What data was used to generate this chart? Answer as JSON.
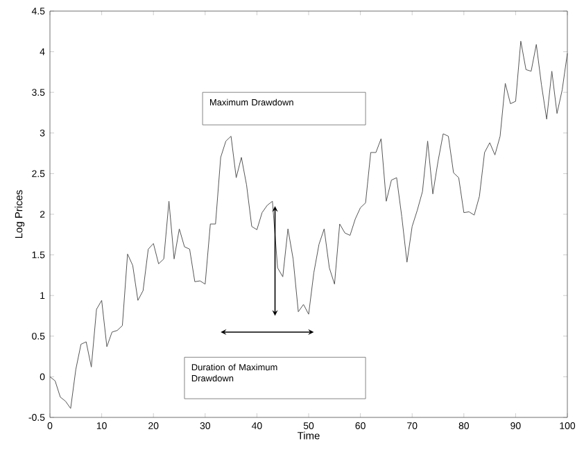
{
  "chart_data": {
    "type": "line",
    "xlabel": "Time",
    "ylabel": "Log Prices",
    "color": "#555555",
    "x": [
      0,
      1,
      2,
      3,
      4,
      5,
      6,
      7,
      8,
      9,
      10,
      11,
      12,
      13,
      14,
      15,
      16,
      17,
      18,
      19,
      20,
      21,
      22,
      23,
      24,
      25,
      26,
      27,
      28,
      29,
      30,
      31,
      32,
      33,
      34,
      35,
      36,
      37,
      38,
      39,
      40,
      41,
      42,
      43,
      44,
      45,
      46,
      47,
      48,
      49,
      50,
      51,
      52,
      53,
      54,
      55,
      56,
      57,
      58,
      59,
      60,
      61,
      62,
      63,
      64,
      65,
      66,
      67,
      68,
      69,
      70,
      71,
      72,
      73,
      74,
      75,
      76,
      77,
      78,
      79,
      80,
      81,
      82,
      83,
      84,
      85,
      86,
      87,
      88,
      89,
      90,
      91,
      92,
      93,
      94,
      95,
      96,
      97,
      98,
      99,
      100
    ],
    "values": [
      0,
      -0.05,
      -0.25,
      -0.3,
      -0.39,
      0.09,
      0.4,
      0.43,
      0.12,
      0.83,
      0.94,
      0.37,
      0.55,
      0.57,
      0.63,
      1.51,
      1.37,
      0.94,
      1.06,
      1.57,
      1.64,
      1.39,
      1.45,
      2.16,
      1.45,
      1.82,
      1.6,
      1.57,
      1.17,
      1.18,
      1.14,
      1.88,
      1.88,
      2.7,
      2.9,
      2.96,
      2.45,
      2.7,
      2.36,
      1.85,
      1.81,
      2.02,
      2.11,
      2.16,
      1.34,
      1.23,
      1.82,
      1.45,
      0.8,
      0.89,
      0.77,
      1.28,
      1.63,
      1.82,
      1.34,
      1.14,
      1.88,
      1.77,
      1.74,
      1.94,
      2.08,
      2.14,
      2.76,
      2.76,
      2.93,
      2.16,
      2.42,
      2.45,
      1.97,
      1.41,
      1.85,
      2.05,
      2.28,
      2.9,
      2.25,
      2.65,
      2.99,
      2.96,
      2.51,
      2.45,
      2.02,
      2.03,
      1.99,
      2.22,
      2.76,
      2.88,
      2.73,
      2.96,
      3.61,
      3.36,
      3.39,
      4.13,
      3.78,
      3.76,
      4.09,
      3.59,
      3.17,
      3.76,
      3.24,
      3.53,
      3.98
    ],
    "xlim": [
      0,
      100
    ],
    "xticks": [
      0,
      10,
      20,
      30,
      40,
      50,
      60,
      70,
      80,
      90,
      100
    ],
    "ylim": [
      -0.5,
      4.5
    ],
    "yticks": [
      -0.5,
      0,
      0.5,
      1,
      1.5,
      2,
      2.5,
      3,
      3.5,
      4,
      4.5
    ],
    "grid": false,
    "marker": "none",
    "line_style": "solid",
    "annotations": [
      "Maximum Drawdown",
      "Duration of Maximum Drawdown"
    ]
  }
}
